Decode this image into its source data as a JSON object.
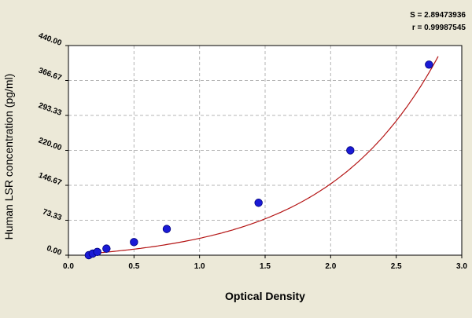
{
  "chart_data": {
    "type": "scatter",
    "xlabel": "Optical Density",
    "ylabel": "Human LSR concentration (pg/ml)",
    "xlim": [
      0,
      3
    ],
    "ylim": [
      0,
      440
    ],
    "x_ticks": [
      0.0,
      0.5,
      1.0,
      1.5,
      2.0,
      2.5,
      3.0
    ],
    "x_tick_labels": [
      "0.0",
      "0.5",
      "1.0",
      "1.5",
      "2.0",
      "2.5",
      "3.0"
    ],
    "y_ticks": [
      0,
      73.33,
      146.67,
      220,
      293.33,
      366.67,
      440
    ],
    "y_tick_labels": [
      "0.00",
      "73.33",
      "146.67",
      "220.00",
      "293.33",
      "366.67",
      "440.00"
    ],
    "grid": "dashed",
    "stats": {
      "s_text": "S = 2.89473936",
      "r_text": "r = 0.99987545"
    },
    "points": [
      {
        "x": 0.155,
        "y": 0
      },
      {
        "x": 0.185,
        "y": 3.4
      },
      {
        "x": 0.22,
        "y": 6.9
      },
      {
        "x": 0.29,
        "y": 13.8
      },
      {
        "x": 0.5,
        "y": 27.5
      },
      {
        "x": 0.75,
        "y": 55
      },
      {
        "x": 1.45,
        "y": 110
      },
      {
        "x": 2.15,
        "y": 220
      },
      {
        "x": 2.75,
        "y": 400
      }
    ],
    "fit_curve": {
      "a": 15.87,
      "b": 1.1726,
      "c": 0.1295,
      "x_start": 0.15,
      "x_end": 2.82
    },
    "colors": {
      "background": "#ece9d8",
      "plot_background": "#ffffff",
      "point_fill": "#1a1ad6",
      "point_stroke": "#00007a",
      "curve": "#b41414",
      "axis": "#000000",
      "grid": "#b4b4b4",
      "text": "#000000"
    }
  }
}
